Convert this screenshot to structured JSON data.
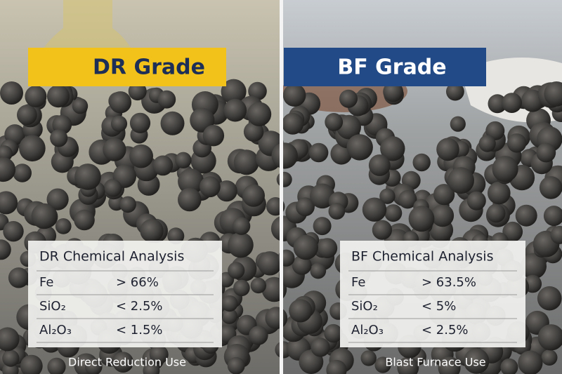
{
  "panels": [
    {
      "banner": "DR Grade",
      "table": {
        "title": "DR Chemical Analysis",
        "rows": [
          [
            "Fe",
            "> 66%"
          ],
          [
            "SiO₂",
            "< 2.5%"
          ],
          [
            "Al₂O₃",
            "< 1.5%"
          ]
        ]
      },
      "caption": "Direct Reduction Use"
    },
    {
      "banner": "BF Grade",
      "table": {
        "title": "BF Chemical Analysis",
        "rows": [
          [
            "Fe",
            "> 63.5%"
          ],
          [
            "SiO₂",
            "< 5%"
          ],
          [
            "Al₂O₃",
            "< 2.5%"
          ]
        ]
      },
      "caption": "Blast Furnace Use"
    }
  ]
}
